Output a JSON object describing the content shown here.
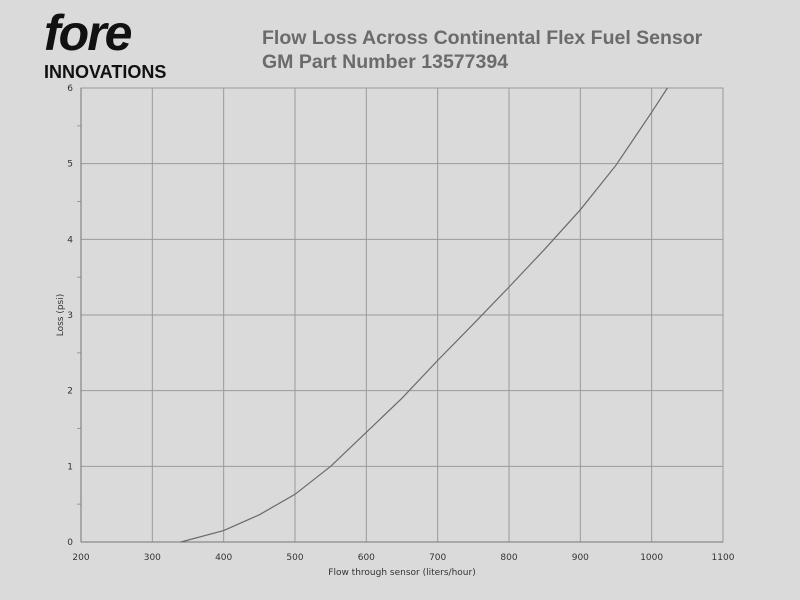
{
  "logo": {
    "word": "fore",
    "sub": "INNOVATIONS"
  },
  "chart_data": {
    "type": "line",
    "title": [
      "Flow Loss Across Continental Flex Fuel Sensor",
      "GM Part Number 13577394"
    ],
    "xlabel": "Flow through sensor (liters/hour)",
    "ylabel": "Loss (psi)",
    "xlim": [
      200,
      1100
    ],
    "ylim": [
      0,
      6
    ],
    "xticks": [
      200,
      300,
      400,
      500,
      600,
      700,
      800,
      900,
      1000,
      1100
    ],
    "yticks": [
      0,
      1,
      2,
      3,
      4,
      5,
      6
    ],
    "grid": true,
    "series": [
      {
        "x": [
          340,
          400,
          450,
          500,
          550,
          600,
          650,
          700,
          750,
          800,
          850,
          900,
          950,
          1000,
          1022
        ],
        "y": [
          0,
          0.15,
          0.36,
          0.63,
          1.0,
          1.45,
          1.9,
          2.4,
          2.88,
          3.37,
          3.87,
          4.39,
          4.98,
          5.68,
          6.0
        ]
      }
    ],
    "line_color": "#6a6a6a",
    "grid_color": "#9a9a9a"
  }
}
